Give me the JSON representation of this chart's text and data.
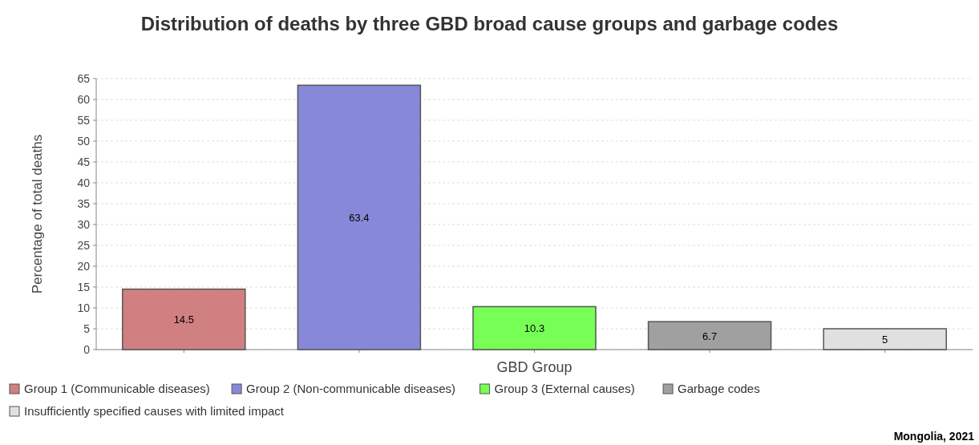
{
  "chart_data": {
    "type": "bar",
    "title": "Distribution of deaths by three GBD broad cause groups and garbage codes",
    "xlabel": "GBD Group",
    "ylabel": "Percentage of total deaths",
    "categories": [
      null,
      null,
      null,
      null,
      null
    ],
    "series": [
      {
        "name": "Group 1 (Communicable diseases)",
        "color": "#d08080",
        "values": [
          14.5,
          null,
          null,
          null,
          null
        ]
      },
      {
        "name": "Group 2 (Non-communicable diseases)",
        "color": "#8888d8",
        "values": [
          null,
          63.4,
          null,
          null,
          null
        ]
      },
      {
        "name": "Group 3 (External causes)",
        "color": "#77ff55",
        "values": [
          null,
          null,
          10.3,
          null,
          null
        ]
      },
      {
        "name": "Garbage codes",
        "color": "#a0a0a0",
        "values": [
          null,
          null,
          null,
          6.7,
          null
        ]
      },
      {
        "name": "Insufficiently specified causes with limited impact",
        "color": "#e0e0e0",
        "values": [
          null,
          null,
          null,
          null,
          5
        ]
      }
    ],
    "ylim": [
      0,
      65
    ],
    "yticks": [
      0,
      5,
      10,
      15,
      20,
      25,
      30,
      35,
      40,
      45,
      50,
      55,
      60,
      65
    ],
    "grid": "y",
    "data_labels": true,
    "legend": "bottom",
    "annotations": [
      "Mongolia, 2021"
    ]
  }
}
